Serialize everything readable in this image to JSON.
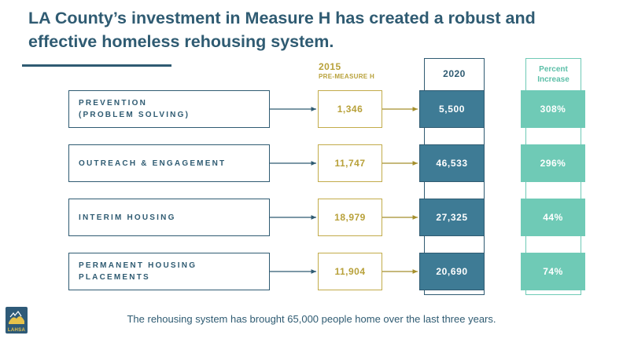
{
  "title": "LA County’s investment in Measure H has created a robust and effective homeless rehousing system.",
  "headers": {
    "year_2015": "2015",
    "year_2015_sub": "PRE-MEASURE H",
    "year_2020": "2020",
    "percent_line1": "Percent",
    "percent_line2": "Increase"
  },
  "rows": [
    {
      "label": "PREVENTION\n(PROBLEM SOLVING)",
      "v2015": "1,346",
      "v2020": "5,500",
      "pct": "308%"
    },
    {
      "label": "OUTREACH & ENGAGEMENT",
      "v2015": "11,747",
      "v2020": "46,533",
      "pct": "296%"
    },
    {
      "label": "INTERIM HOUSING",
      "v2015": "18,979",
      "v2020": "27,325",
      "pct": "44%"
    },
    {
      "label": "PERMANENT HOUSING\nPLACEMENTS",
      "v2015": "11,904",
      "v2020": "20,690",
      "pct": "74%"
    }
  ],
  "footer": "The rehousing system has brought 65,000 people home over the last three years.",
  "logo": {
    "text": "LAHSA",
    "icon": "lahsa-logo-icon"
  },
  "colors": {
    "navy": "#2f5b72",
    "gold": "#b8a13a",
    "teal_dark": "#3e7b95",
    "teal_light": "#6fcab6"
  }
}
